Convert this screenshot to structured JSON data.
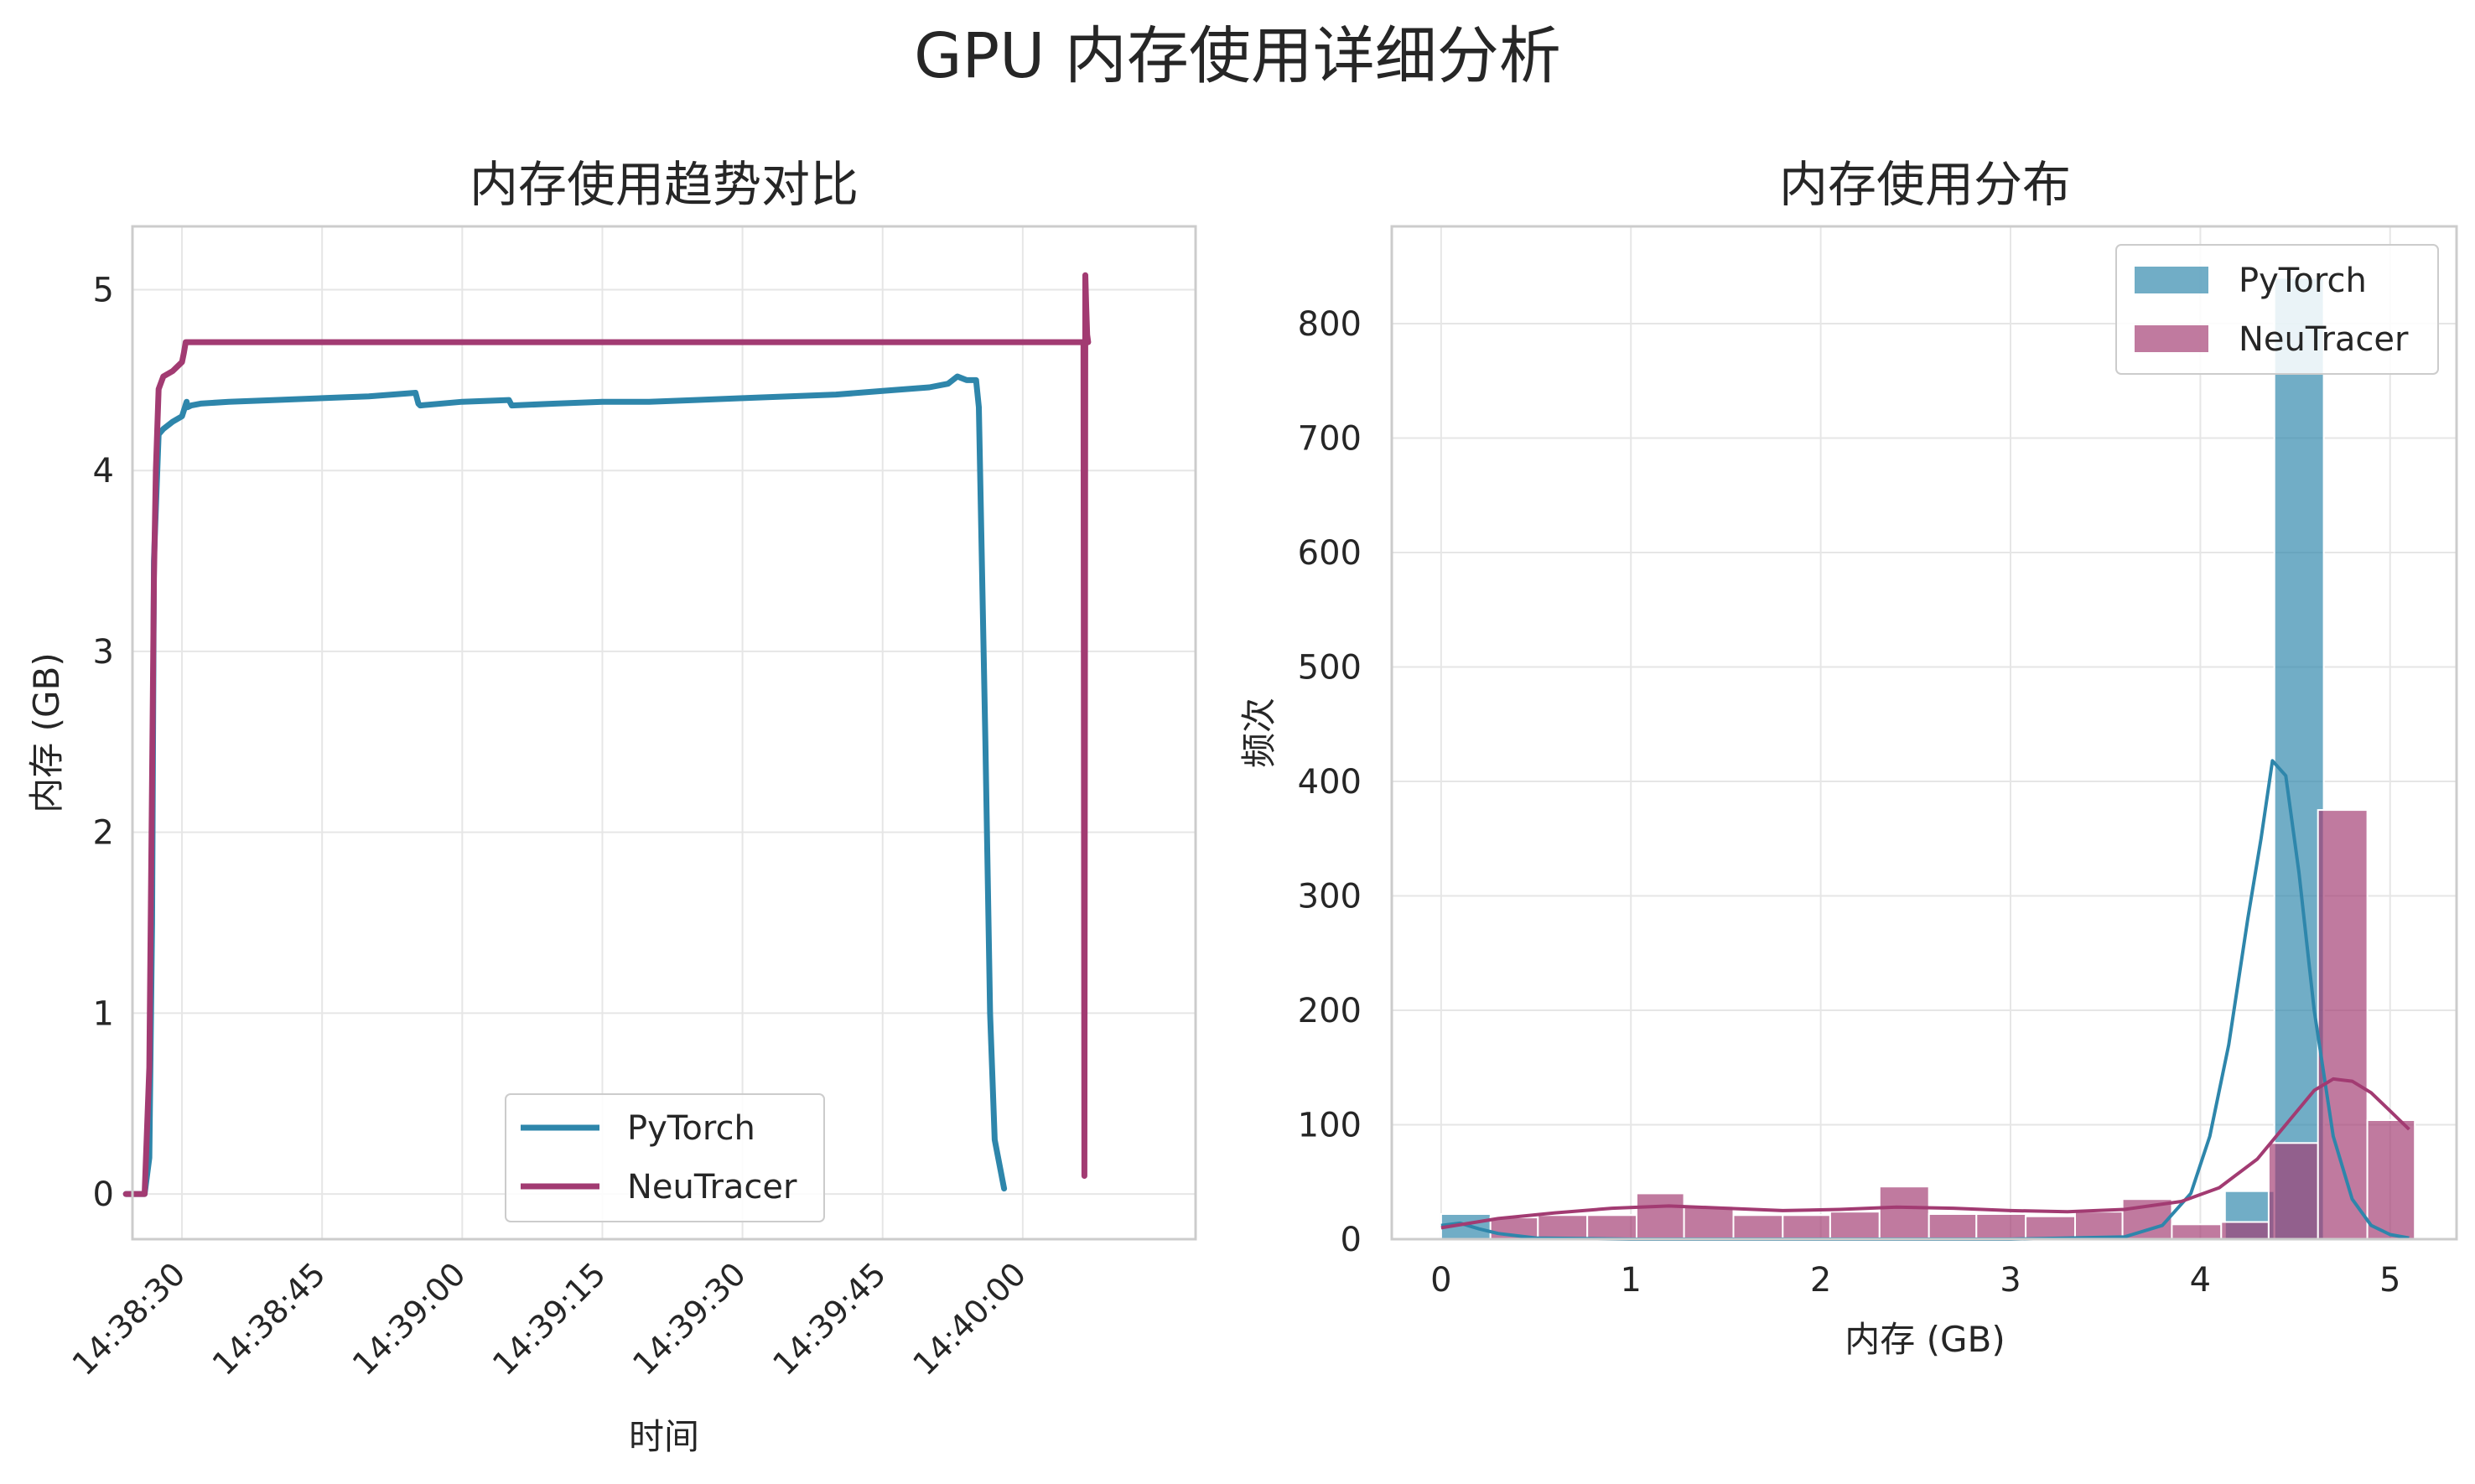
{
  "figure": {
    "title": "GPU 内存使用详细分析"
  },
  "colors": {
    "pytorch": "#2e86ab",
    "neutracer": "#a23b72",
    "grid": "#e6e6e6",
    "axes_edge": "#cccccc"
  },
  "chart_data": [
    {
      "type": "line",
      "title": "内存使用趋势对比",
      "xlabel": "时间",
      "ylabel": "内存 (GB)",
      "x_tick_labels": [
        "14:38:30",
        "14:38:45",
        "14:39:00",
        "14:39:15",
        "14:39:30",
        "14:39:45",
        "14:40:00"
      ],
      "y_ticks": [
        0,
        1,
        2,
        3,
        4,
        5
      ],
      "x_range_seconds_from_143830": [
        -5.3,
        108.5
      ],
      "ylim": [
        -0.25,
        5.35
      ],
      "grid": true,
      "legend_position": "lower center",
      "series": [
        {
          "name": "PyTorch",
          "t_seconds_from_143830": [
            -6,
            -5,
            -4,
            -3.5,
            -3.2,
            -3.0,
            -2.5,
            -2.0,
            -1.0,
            0,
            0.5,
            0.6,
            1.0,
            2,
            5,
            10,
            15,
            20,
            25,
            25.3,
            25.5,
            30,
            35,
            35.3,
            40,
            45,
            50,
            55,
            60,
            65,
            70,
            75,
            80,
            82,
            82.5,
            83,
            84,
            85,
            85.3,
            86,
            86.5,
            87,
            88
          ],
          "values": [
            0,
            0,
            0,
            0.2,
            1.5,
            3.5,
            4.2,
            4.23,
            4.27,
            4.3,
            4.38,
            4.35,
            4.36,
            4.37,
            4.38,
            4.39,
            4.4,
            4.41,
            4.43,
            4.37,
            4.36,
            4.38,
            4.39,
            4.36,
            4.37,
            4.38,
            4.38,
            4.39,
            4.4,
            4.41,
            4.42,
            4.44,
            4.46,
            4.48,
            4.5,
            4.52,
            4.5,
            4.5,
            4.35,
            2.5,
            1.0,
            0.3,
            0.03
          ]
        },
        {
          "name": "NeuTracer",
          "t_seconds_from_143830": [
            -6,
            -5,
            -4,
            -3.5,
            -3.2,
            -3.0,
            -2.8,
            -2.5,
            -2.0,
            -1.0,
            0,
            0.2,
            0.4,
            1,
            10,
            30,
            60,
            90,
            96.5,
            96.6,
            96.7,
            96.8,
            96.9,
            97
          ],
          "values": [
            0,
            0,
            0,
            0.7,
            2.3,
            3.4,
            4.0,
            4.45,
            4.52,
            4.55,
            4.6,
            4.65,
            4.71,
            4.71,
            4.71,
            4.71,
            4.71,
            4.71,
            4.71,
            0.1,
            5.08,
            4.9,
            4.75,
            4.71
          ]
        }
      ]
    },
    {
      "type": "bar",
      "title": "内存使用分布",
      "xlabel": "内存 (GB)",
      "ylabel": "频次",
      "x_ticks": [
        0,
        1,
        2,
        3,
        4,
        5
      ],
      "y_ticks": [
        0,
        100,
        200,
        300,
        400,
        500,
        600,
        700,
        800
      ],
      "xlim": [
        -0.26,
        5.35
      ],
      "ylim": [
        0,
        885
      ],
      "grid": true,
      "legend_position": "upper right",
      "series": [
        {
          "name": "PyTorch",
          "bins": [
            [
              0.0,
              0.26
            ],
            [
              4.13,
              4.39
            ],
            [
              4.39,
              4.65
            ]
          ],
          "counts": [
            22,
            42,
            840
          ],
          "kde_x": [
            0,
            0.1,
            0.2,
            0.3,
            0.5,
            1.0,
            2.0,
            3.0,
            3.6,
            3.8,
            3.95,
            4.05,
            4.15,
            4.25,
            4.32,
            4.38,
            4.45,
            4.52,
            4.6,
            4.7,
            4.8,
            4.9,
            5.0,
            5.1
          ],
          "kde_y": [
            12,
            14,
            9,
            5,
            1,
            0,
            0,
            0,
            2,
            12,
            40,
            90,
            170,
            280,
            350,
            418,
            405,
            320,
            200,
            90,
            35,
            12,
            4,
            1
          ]
        },
        {
          "name": "NeuTracer",
          "bins": [
            [
              0.26,
              0.51
            ],
            [
              0.51,
              0.77
            ],
            [
              0.77,
              1.03
            ],
            [
              1.03,
              1.28
            ],
            [
              1.28,
              1.54
            ],
            [
              1.54,
              1.8
            ],
            [
              1.8,
              2.05
            ],
            [
              2.05,
              2.31
            ],
            [
              2.31,
              2.57
            ],
            [
              2.57,
              2.82
            ],
            [
              2.82,
              3.08
            ],
            [
              3.08,
              3.34
            ],
            [
              3.34,
              3.59
            ],
            [
              3.59,
              3.85
            ],
            [
              3.85,
              4.11
            ],
            [
              4.11,
              4.36
            ],
            [
              4.36,
              4.62
            ],
            [
              4.62,
              4.88
            ],
            [
              4.88,
              5.13
            ]
          ],
          "counts": [
            19,
            21,
            21,
            40,
            29,
            21,
            21,
            24,
            46,
            22,
            22,
            20,
            24,
            35,
            13,
            15,
            84,
            375,
            104
          ],
          "kde_x": [
            0,
            0.3,
            0.6,
            0.9,
            1.2,
            1.5,
            1.8,
            2.1,
            2.4,
            2.7,
            3.0,
            3.3,
            3.6,
            3.9,
            4.1,
            4.3,
            4.5,
            4.6,
            4.7,
            4.8,
            4.9,
            5.0,
            5.1
          ],
          "kde_y": [
            10,
            18,
            23,
            27,
            29,
            27,
            25,
            26,
            28,
            27,
            25,
            24,
            26,
            33,
            45,
            70,
            110,
            130,
            140,
            138,
            128,
            112,
            96
          ]
        }
      ]
    }
  ]
}
